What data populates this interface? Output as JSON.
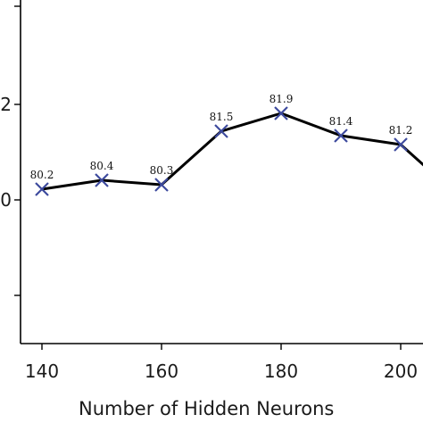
{
  "chart_data": {
    "type": "line",
    "xlabel": "Number of Hidden Neurons",
    "ylabel": "",
    "x_ticks": [
      140,
      160,
      180,
      200
    ],
    "y_ticks": [
      "",
      "2",
      "0",
      ""
    ],
    "xlim": [
      137.5,
      205
    ],
    "series": [
      {
        "x": [
          140,
          150,
          160,
          170,
          180,
          190,
          200,
          205
        ],
        "values": [
          80.2,
          80.4,
          80.3,
          81.5,
          81.9,
          81.4,
          81.2,
          80.6
        ],
        "labels": [
          "80.2",
          "80.4",
          "80.3",
          "81.5",
          "81.9",
          "81.4",
          "81.2",
          ""
        ],
        "color": "#000000",
        "marker_color": "#3d4a9e",
        "marker": "x"
      }
    ],
    "grid": false,
    "legend": "none"
  }
}
